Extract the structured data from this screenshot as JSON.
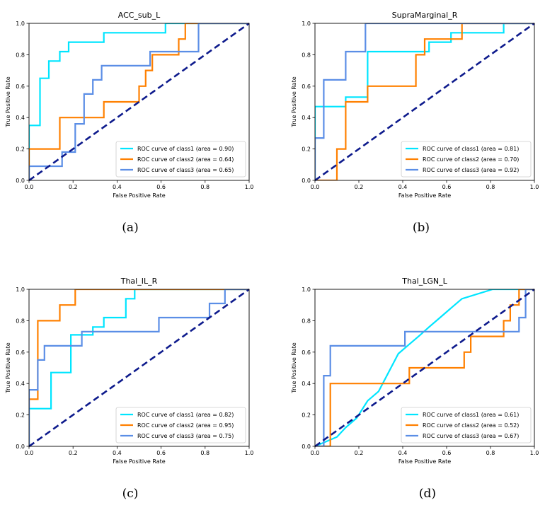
{
  "figure": {
    "x_label": "False Positive Rate",
    "y_label": "True Positive Rate"
  },
  "colors": {
    "class1": "#00e5ff",
    "class2": "#ff8000",
    "class3": "#5b8ee6",
    "chance": "#0d1a8c",
    "axes": "#000000"
  },
  "chart_data": [
    {
      "type": "line",
      "title": "ACC_sub_L",
      "caption": "(a)",
      "xlabel": "False Positive Rate",
      "ylabel": "True Positive Rate",
      "xlim": [
        0,
        1
      ],
      "ylim": [
        0,
        1
      ],
      "x_ticks": [
        "0.0",
        "0.2",
        "0.4",
        "0.6",
        "0.8",
        "1.0"
      ],
      "y_ticks": [
        "0.0",
        "0.2",
        "0.4",
        "0.6",
        "0.8",
        "1.0"
      ],
      "legend_position": "bottom-right",
      "series": [
        {
          "name": "ROC curve of class1",
          "auc": "0.90",
          "label": "ROC curve of class1 (area = 0.90)",
          "x": [
            0,
            0,
            0.05,
            0.05,
            0.09,
            0.09,
            0.14,
            0.14,
            0.18,
            0.18,
            0.34,
            0.34,
            0.62,
            0.62,
            1.0
          ],
          "y": [
            0,
            0.35,
            0.35,
            0.65,
            0.65,
            0.76,
            0.76,
            0.82,
            0.82,
            0.88,
            0.88,
            0.94,
            0.94,
            1.0,
            1.0
          ]
        },
        {
          "name": "ROC curve of class2",
          "auc": "0.64",
          "label": "ROC curve of class2 (area = 0.64)",
          "x": [
            0,
            0,
            0.14,
            0.14,
            0.34,
            0.34,
            0.5,
            0.5,
            0.53,
            0.53,
            0.56,
            0.56,
            0.68,
            0.68,
            0.71,
            0.71,
            1.0
          ],
          "y": [
            0,
            0.2,
            0.2,
            0.4,
            0.4,
            0.5,
            0.5,
            0.6,
            0.6,
            0.7,
            0.7,
            0.8,
            0.8,
            0.9,
            0.9,
            1.0,
            1.0
          ]
        },
        {
          "name": "ROC curve of class3",
          "auc": "0.65",
          "label": "ROC curve of class3 (area = 0.65)",
          "x": [
            0,
            0,
            0.15,
            0.15,
            0.21,
            0.21,
            0.25,
            0.25,
            0.29,
            0.29,
            0.33,
            0.33,
            0.55,
            0.55,
            0.77,
            0.77,
            1.0
          ],
          "y": [
            0,
            0.09,
            0.09,
            0.18,
            0.18,
            0.36,
            0.36,
            0.55,
            0.55,
            0.64,
            0.64,
            0.73,
            0.73,
            0.82,
            0.82,
            1.0,
            1.0
          ]
        }
      ]
    },
    {
      "type": "line",
      "title": "SupraMarginal_R",
      "caption": "(b)",
      "xlabel": "False Positive Rate",
      "ylabel": "True Positive Rate",
      "xlim": [
        0,
        1
      ],
      "ylim": [
        0,
        1
      ],
      "x_ticks": [
        "0.0",
        "0.2",
        "0.4",
        "0.6",
        "0.8",
        "1.0"
      ],
      "y_ticks": [
        "0.0",
        "0.2",
        "0.4",
        "0.6",
        "0.8",
        "1.0"
      ],
      "legend_position": "bottom-right",
      "series": [
        {
          "name": "ROC curve of class1",
          "auc": "0.81",
          "label": "ROC curve of class1 (area = 0.81)",
          "x": [
            0,
            0,
            0.14,
            0.14,
            0.24,
            0.24,
            0.52,
            0.52,
            0.62,
            0.62,
            0.86,
            0.86,
            1.0
          ],
          "y": [
            0,
            0.47,
            0.47,
            0.53,
            0.53,
            0.82,
            0.82,
            0.88,
            0.88,
            0.94,
            0.94,
            1.0,
            1.0
          ]
        },
        {
          "name": "ROC curve of class2",
          "auc": "0.70",
          "label": "ROC curve of class2 (area = 0.70)",
          "x": [
            0,
            0.1,
            0.1,
            0.14,
            0.14,
            0.24,
            0.24,
            0.46,
            0.46,
            0.5,
            0.5,
            0.67,
            0.67,
            1.0
          ],
          "y": [
            0,
            0,
            0.2,
            0.2,
            0.5,
            0.5,
            0.6,
            0.6,
            0.8,
            0.8,
            0.9,
            0.9,
            1.0,
            1.0
          ]
        },
        {
          "name": "ROC curve of class3",
          "auc": "0.92",
          "label": "ROC curve of class3 (area = 0.92)",
          "x": [
            0,
            0,
            0.04,
            0.04,
            0.14,
            0.14,
            0.23,
            0.23,
            1.0
          ],
          "y": [
            0,
            0.27,
            0.27,
            0.64,
            0.64,
            0.82,
            0.82,
            1.0,
            1.0
          ]
        }
      ]
    },
    {
      "type": "line",
      "title": "Thal_IL_R",
      "caption": "(c)",
      "xlabel": "False Positive Rate",
      "ylabel": "True Positive Rate",
      "xlim": [
        0,
        1
      ],
      "ylim": [
        0,
        1
      ],
      "x_ticks": [
        "0.0",
        "0.2",
        "0.4",
        "0.6",
        "0.8",
        "1.0"
      ],
      "y_ticks": [
        "0.0",
        "0.2",
        "0.4",
        "0.6",
        "0.8",
        "1.0"
      ],
      "legend_position": "bottom-right",
      "series": [
        {
          "name": "ROC curve of class1",
          "auc": "0.82",
          "label": "ROC curve of class1 (area = 0.82)",
          "x": [
            0,
            0,
            0.1,
            0.1,
            0.19,
            0.19,
            0.29,
            0.29,
            0.34,
            0.34,
            0.44,
            0.44,
            0.48,
            0.48,
            1.0
          ],
          "y": [
            0,
            0.24,
            0.24,
            0.47,
            0.47,
            0.71,
            0.71,
            0.76,
            0.76,
            0.82,
            0.82,
            0.94,
            0.94,
            1.0,
            1.0
          ]
        },
        {
          "name": "ROC curve of class2",
          "auc": "0.95",
          "label": "ROC curve of class2 (area = 0.95)",
          "x": [
            0,
            0,
            0.04,
            0.04,
            0.14,
            0.14,
            0.21,
            0.21,
            1.0
          ],
          "y": [
            0,
            0.3,
            0.3,
            0.8,
            0.8,
            0.9,
            0.9,
            1.0,
            1.0
          ]
        },
        {
          "name": "ROC curve of class3",
          "auc": "0.75",
          "label": "ROC curve of class3 (area = 0.75)",
          "x": [
            0,
            0,
            0.04,
            0.04,
            0.07,
            0.07,
            0.24,
            0.24,
            0.59,
            0.59,
            0.82,
            0.82,
            0.89,
            0.89,
            1.0
          ],
          "y": [
            0,
            0.36,
            0.36,
            0.55,
            0.55,
            0.64,
            0.64,
            0.73,
            0.73,
            0.82,
            0.82,
            0.91,
            0.91,
            1.0,
            1.0
          ]
        }
      ]
    },
    {
      "type": "line",
      "title": "Thal_LGN_L",
      "caption": "(d)",
      "xlabel": "False Positive Rate",
      "ylabel": "True Positive Rate",
      "xlim": [
        0,
        1
      ],
      "ylim": [
        0,
        1
      ],
      "x_ticks": [
        "0.0",
        "0.2",
        "0.4",
        "0.6",
        "0.8",
        "1.0"
      ],
      "y_ticks": [
        "0.0",
        "0.2",
        "0.4",
        "0.6",
        "0.8",
        "1.0"
      ],
      "legend_position": "bottom-right",
      "series": [
        {
          "name": "ROC curve of class1",
          "auc": "0.61",
          "label": "ROC curve of class1 (area = 0.61)",
          "x": [
            0,
            0.1,
            0.1,
            0.14,
            0.14,
            0.19,
            0.19,
            0.24,
            0.24,
            0.29,
            0.29,
            0.38,
            0.38,
            0.43,
            0.43,
            0.48,
            0.48,
            0.52,
            0.52,
            0.57,
            0.57,
            0.62,
            0.62,
            0.67,
            0.67,
            0.81,
            0.81,
            1.0
          ],
          "y": [
            0,
            0.06,
            0.06,
            0.12,
            0.12,
            0.18,
            0.18,
            0.29,
            0.29,
            0.35,
            0.35,
            0.59,
            0.59,
            0.65,
            0.65,
            0.71,
            0.71,
            0.76,
            0.76,
            0.82,
            0.82,
            0.88,
            0.88,
            0.94,
            0.94,
            1.0,
            1.0,
            1.0
          ]
        },
        {
          "name": "ROC curve of class2",
          "auc": "0.52",
          "label": "ROC curve of class2 (area = 0.52)",
          "x": [
            0,
            0.07,
            0.07,
            0.43,
            0.43,
            0.68,
            0.68,
            0.71,
            0.71,
            0.86,
            0.86,
            0.89,
            0.89,
            0.93,
            0.93,
            1.0
          ],
          "y": [
            0,
            0,
            0.4,
            0.4,
            0.5,
            0.5,
            0.6,
            0.6,
            0.7,
            0.7,
            0.8,
            0.8,
            0.9,
            0.9,
            1.0,
            1.0
          ]
        },
        {
          "name": "ROC curve of class3",
          "auc": "0.67",
          "label": "ROC curve of class3 (area = 0.67)",
          "x": [
            0,
            0.04,
            0.04,
            0.07,
            0.07,
            0.41,
            0.41,
            0.93,
            0.93,
            0.96,
            0.96,
            1.0
          ],
          "y": [
            0,
            0,
            0.45,
            0.45,
            0.64,
            0.64,
            0.73,
            0.73,
            0.82,
            0.82,
            1.0,
            1.0
          ]
        }
      ]
    }
  ]
}
